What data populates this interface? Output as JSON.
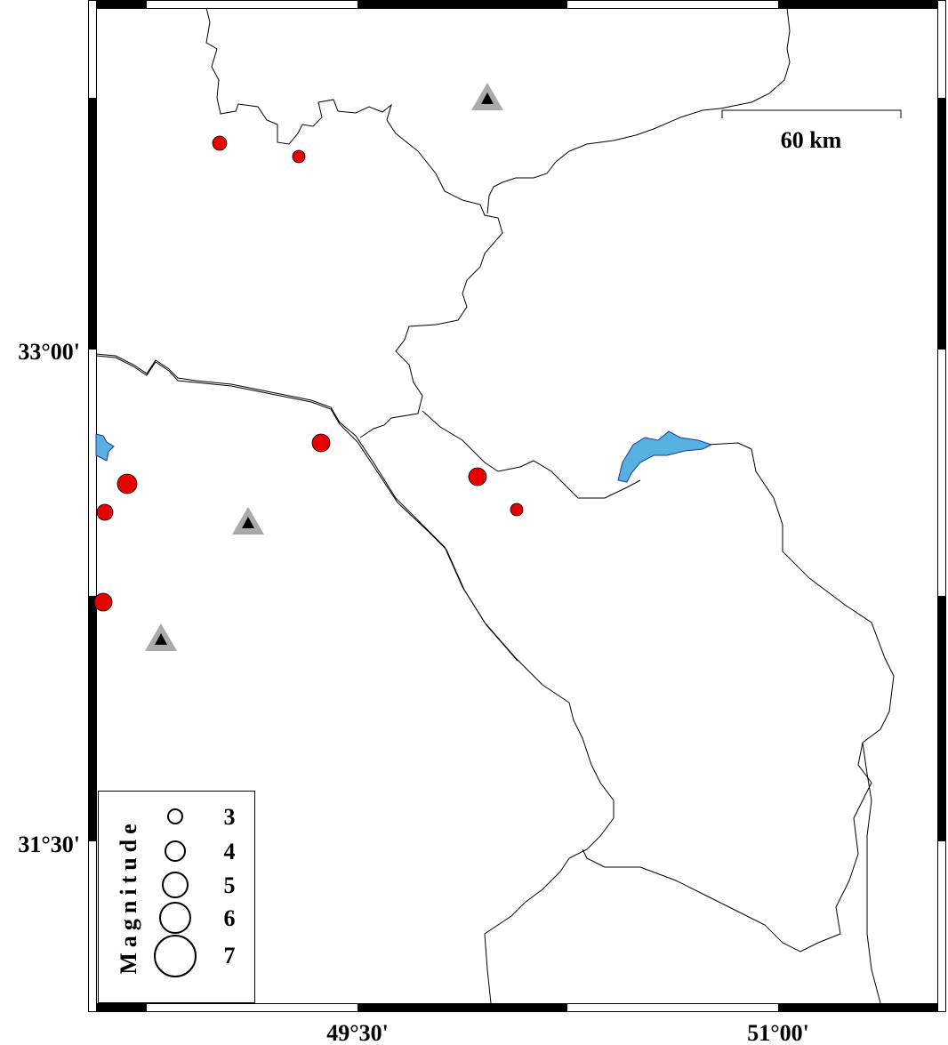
{
  "map": {
    "lat_labels": [
      "33°00'",
      "31°30'"
    ],
    "lon_labels": [
      "49°30'",
      "51°00'"
    ],
    "scale_bar": {
      "label": "60 km"
    },
    "legend": {
      "title": "Magnitude",
      "items": [
        "3",
        "4",
        "5",
        "6",
        "7"
      ]
    }
  }
}
